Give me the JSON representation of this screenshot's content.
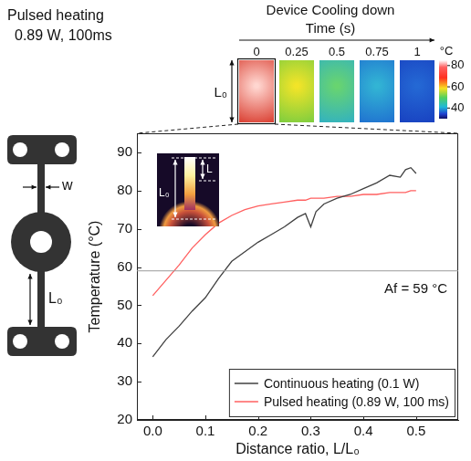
{
  "chart_data": {
    "type": "line",
    "x_label": "Distance ratio, L/L₀",
    "y_label": "Temperature (°C)",
    "x": [
      0,
      0.025,
      0.05,
      0.075,
      0.1,
      0.125,
      0.15,
      0.175,
      0.2,
      0.225,
      0.25,
      0.275,
      0.29,
      0.3,
      0.31,
      0.325,
      0.35,
      0.375,
      0.4,
      0.425,
      0.45,
      0.47,
      0.48,
      0.49,
      0.5
    ],
    "series": [
      {
        "name": "Continuous heating (0.1 W)",
        "color": "#404040",
        "values": [
          36.5,
          41,
          44.5,
          48.5,
          52,
          57,
          61.5,
          64,
          66.5,
          68.5,
          70.5,
          73,
          74,
          70.5,
          74.5,
          76.5,
          78,
          79,
          80.5,
          82,
          84,
          83.5,
          85.5,
          86,
          84.5
        ]
      },
      {
        "name": "Pulsed heating (0.89 W, 100 ms)",
        "color": "#ff6060",
        "values": [
          52.5,
          56.5,
          60.5,
          65,
          68.5,
          71.5,
          73.5,
          75,
          76,
          76.5,
          77,
          77.5,
          77.5,
          78,
          78,
          78,
          78.5,
          78.5,
          79,
          79,
          79.5,
          79.5,
          79.5,
          80,
          80
        ]
      }
    ],
    "xlim": [
      -0.03,
      0.58
    ],
    "xticks": [
      {
        "value": 0,
        "label": "0.0"
      },
      0.1,
      0.2,
      0.3,
      0.4,
      0.5
    ],
    "ylim": [
      20,
      95
    ],
    "yticks": [
      20,
      30,
      40,
      50,
      60,
      70,
      80,
      90
    ],
    "grid": false,
    "legend": "lower right",
    "annotations": [
      {
        "y": 59,
        "text": "Af = 59 °C"
      }
    ]
  },
  "header": {
    "title_lines": [
      "Pulsed heating",
      "0.89 W, 100ms"
    ],
    "sequence_title": "Device Cooling down",
    "time_label": "Time (s)",
    "times": [
      0,
      0.25,
      0.5,
      0.75,
      1
    ],
    "image_length_label": "L₀"
  },
  "colorbar": {
    "label": "°C",
    "range": [
      30,
      85
    ],
    "ticks": [
      80,
      60,
      40
    ]
  },
  "schematic": {
    "width_label": "w",
    "length_label": "L₀"
  },
  "inset": {
    "full_length_label": "L₀",
    "length_label": "L"
  }
}
